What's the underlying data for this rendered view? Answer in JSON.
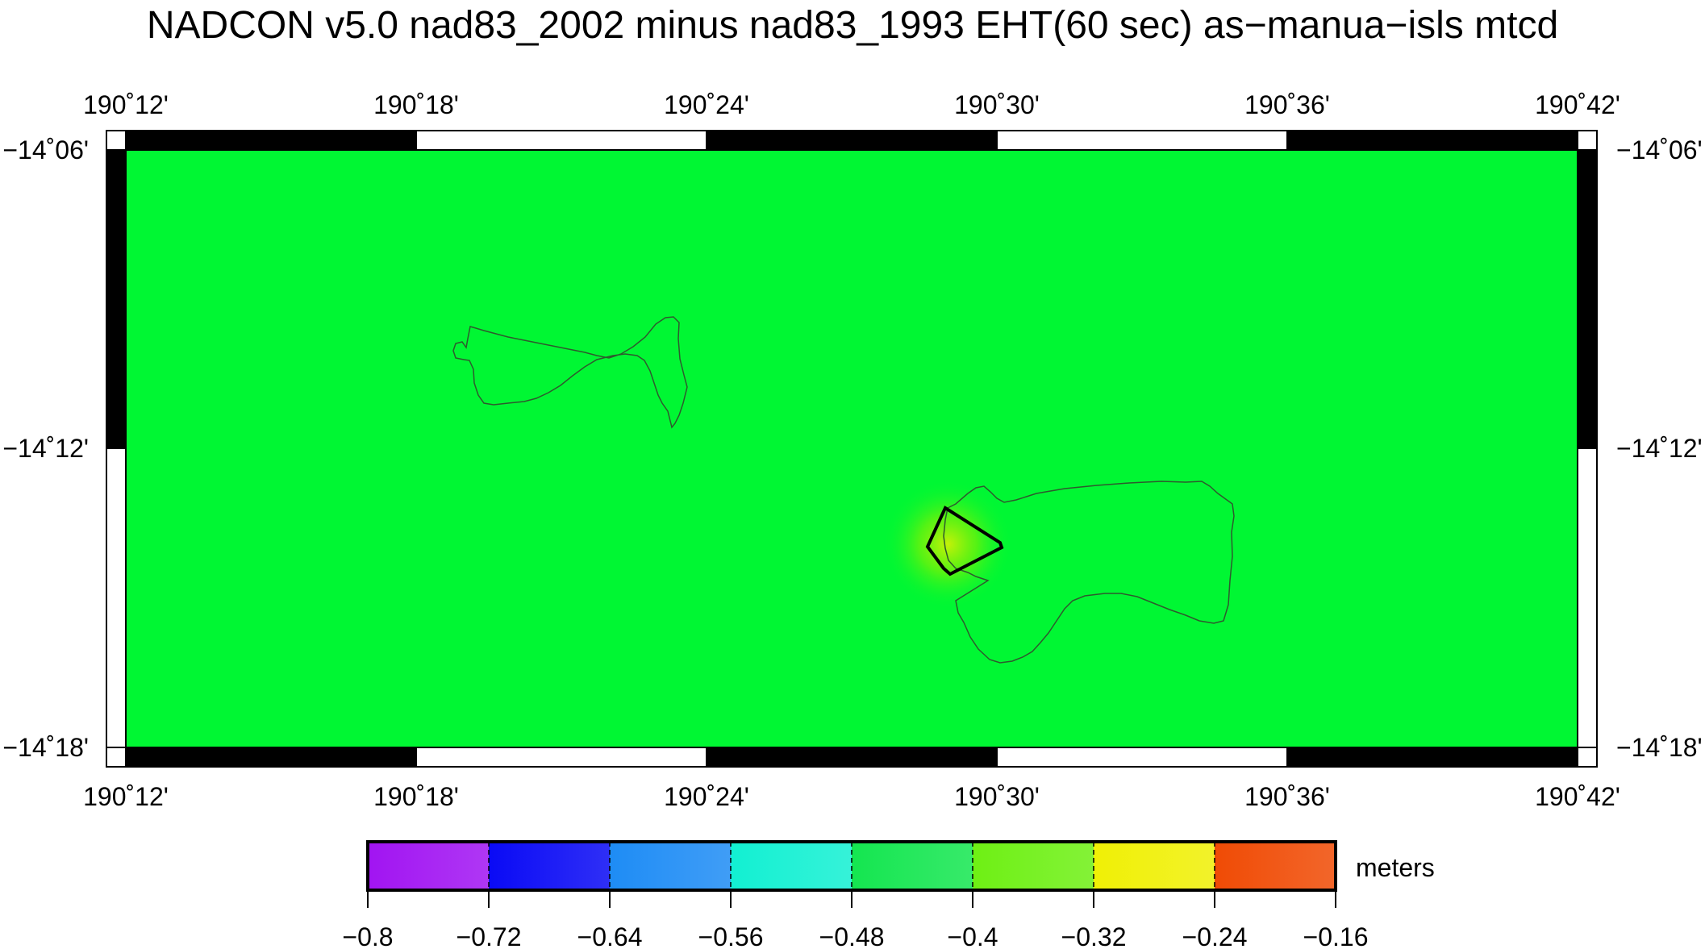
{
  "title": "NADCON v5.0 nad83_2002 minus nad83_1993 EHT(60 sec) as−manua−isls mtcd",
  "map": {
    "background_color": "#00f733",
    "lon_ticks": [
      "190˚12'",
      "190˚18'",
      "190˚24'",
      "190˚30'",
      "190˚36'",
      "190˚42'"
    ],
    "lat_ticks": [
      "−14˚06'",
      "−14˚12'",
      "−14˚18'"
    ],
    "features": [
      "ofu-olosega-coastline",
      "tau-coastline",
      "survey-polygon-outline",
      "anomaly-highlight"
    ]
  },
  "colorbar": {
    "unit_label": "meters",
    "tick_labels": [
      "−0.8",
      "−0.72",
      "−0.64",
      "−0.56",
      "−0.48",
      "−0.4",
      "−0.32",
      "−0.24",
      "−0.16"
    ],
    "segment_colors": [
      "#a114f2",
      "#0a0af5",
      "#1e8cf5",
      "#12f0d2",
      "#14e650",
      "#6ef014",
      "#f0f005",
      "#f04b05"
    ]
  }
}
